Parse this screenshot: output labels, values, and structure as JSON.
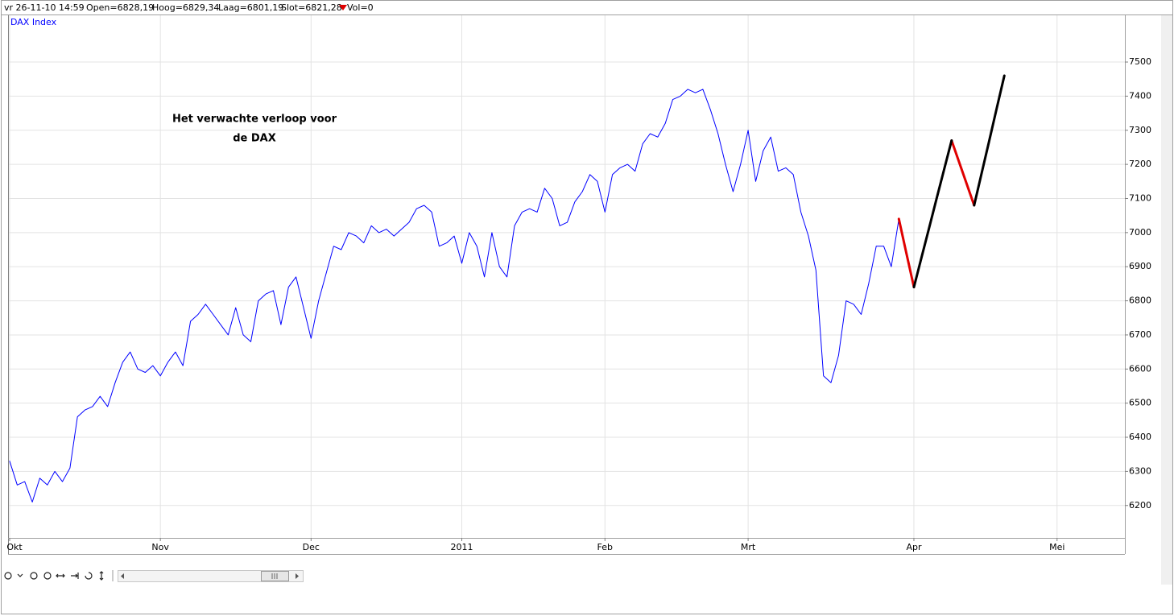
{
  "info_bar": {
    "items": [
      "vr 26-11-10 14:59",
      "Open=6828,19",
      "Hoog=6829,34",
      "Laag=6801,19",
      "Slot=6821,28",
      "Vol=0"
    ]
  },
  "chart_data": {
    "type": "line",
    "title": "DAX Index",
    "annotations": [
      "Het verwachte verloop voor",
      "de DAX"
    ],
    "categories": [
      "Okt",
      null,
      null,
      null,
      null,
      null,
      null,
      null,
      null,
      null,
      null,
      null,
      null,
      null,
      null,
      null,
      null,
      null,
      null,
      null,
      "Nov",
      null,
      null,
      null,
      null,
      null,
      null,
      null,
      null,
      null,
      null,
      null,
      null,
      null,
      null,
      null,
      null,
      null,
      null,
      null,
      "Dec",
      null,
      null,
      null,
      null,
      null,
      null,
      null,
      null,
      null,
      null,
      null,
      null,
      null,
      null,
      null,
      null,
      null,
      null,
      null,
      "2011",
      null,
      null,
      null,
      null,
      null,
      null,
      null,
      null,
      null,
      null,
      null,
      null,
      null,
      null,
      null,
      null,
      null,
      null,
      "Feb",
      null,
      null,
      null,
      null,
      null,
      null,
      null,
      null,
      null,
      null,
      null,
      null,
      null,
      null,
      null,
      null,
      null,
      null,
      "Mrt",
      null,
      null,
      null,
      null,
      null,
      null,
      null,
      null,
      null,
      null,
      null,
      null,
      null,
      null,
      null,
      null,
      null,
      null,
      null,
      null,
      null,
      "Apr",
      null,
      null,
      null,
      null,
      null,
      null,
      null,
      null,
      null,
      null,
      null,
      null,
      null,
      null,
      null,
      null,
      null,
      null,
      "Mei",
      null,
      null,
      null,
      null,
      null,
      null,
      null,
      null,
      null
    ],
    "series": [
      {
        "color": "#0000ff",
        "width": 1,
        "values": [
          6330,
          6260,
          6270,
          6210,
          6280,
          6260,
          6300,
          6270,
          6310,
          6460,
          6480,
          6490,
          6520,
          6490,
          6560,
          6620,
          6650,
          6600,
          6590,
          6610,
          6580,
          6620,
          6650,
          6610,
          6740,
          6760,
          6790,
          6760,
          6730,
          6700,
          6780,
          6700,
          6680,
          6800,
          6820,
          6830,
          6730,
          6840,
          6870,
          6780,
          6690,
          6800,
          6880,
          6960,
          6950,
          7000,
          6990,
          6970,
          7020,
          7000,
          7010,
          6990,
          7010,
          7030,
          7070,
          7080,
          7060,
          6960,
          6970,
          6990,
          6910,
          7000,
          6960,
          6870,
          7000,
          6900,
          6870,
          7020,
          7060,
          7070,
          7060,
          7130,
          7100,
          7020,
          7030,
          7090,
          7120,
          7170,
          7150,
          7060,
          7170,
          7190,
          7200,
          7180,
          7260,
          7290,
          7280,
          7320,
          7390,
          7400,
          7420,
          7410,
          7420,
          7360,
          7290,
          7200,
          7120,
          7200,
          7300,
          7150,
          7240,
          7280,
          7180,
          7190,
          7170,
          7060,
          6990,
          6890,
          6580,
          6560,
          6640,
          6800,
          6790,
          6760,
          6850,
          6960,
          6960,
          6900,
          7040,
          null,
          null,
          null,
          null,
          null,
          null,
          null,
          null,
          null,
          null,
          null,
          null,
          null,
          null,
          null,
          null,
          null,
          null,
          null,
          null,
          null,
          null,
          null,
          null,
          null,
          null,
          null,
          null,
          null,
          null
        ]
      },
      {
        "color": "#e00000",
        "width": 3,
        "values": [
          null,
          null,
          null,
          null,
          null,
          null,
          null,
          null,
          null,
          null,
          null,
          null,
          null,
          null,
          null,
          null,
          null,
          null,
          null,
          null,
          null,
          null,
          null,
          null,
          null,
          null,
          null,
          null,
          null,
          null,
          null,
          null,
          null,
          null,
          null,
          null,
          null,
          null,
          null,
          null,
          null,
          null,
          null,
          null,
          null,
          null,
          null,
          null,
          null,
          null,
          null,
          null,
          null,
          null,
          null,
          null,
          null,
          null,
          null,
          null,
          null,
          null,
          null,
          null,
          null,
          null,
          null,
          null,
          null,
          null,
          null,
          null,
          null,
          null,
          null,
          null,
          null,
          null,
          null,
          null,
          null,
          null,
          null,
          null,
          null,
          null,
          null,
          null,
          null,
          null,
          null,
          null,
          null,
          null,
          null,
          null,
          null,
          null,
          null,
          null,
          null,
          null,
          null,
          null,
          null,
          null,
          null,
          null,
          null,
          null,
          null,
          null,
          null,
          null,
          null,
          null,
          null,
          null,
          7040,
          6940,
          6840,
          null,
          null,
          null,
          null,
          7270,
          7207,
          7143,
          7080,
          null,
          null,
          null,
          null,
          null,
          null,
          null,
          null,
          null,
          null,
          null,
          null,
          null,
          null,
          null,
          null,
          null,
          null,
          null,
          null
        ]
      },
      {
        "color": "#000000",
        "width": 3,
        "values": [
          null,
          null,
          null,
          null,
          null,
          null,
          null,
          null,
          null,
          null,
          null,
          null,
          null,
          null,
          null,
          null,
          null,
          null,
          null,
          null,
          null,
          null,
          null,
          null,
          null,
          null,
          null,
          null,
          null,
          null,
          null,
          null,
          null,
          null,
          null,
          null,
          null,
          null,
          null,
          null,
          null,
          null,
          null,
          null,
          null,
          null,
          null,
          null,
          null,
          null,
          null,
          null,
          null,
          null,
          null,
          null,
          null,
          null,
          null,
          null,
          null,
          null,
          null,
          null,
          null,
          null,
          null,
          null,
          null,
          null,
          null,
          null,
          null,
          null,
          null,
          null,
          null,
          null,
          null,
          null,
          null,
          null,
          null,
          null,
          null,
          null,
          null,
          null,
          null,
          null,
          null,
          null,
          null,
          null,
          null,
          null,
          null,
          null,
          null,
          null,
          null,
          null,
          null,
          null,
          null,
          null,
          null,
          null,
          null,
          null,
          null,
          null,
          null,
          null,
          null,
          null,
          null,
          null,
          null,
          null,
          6840,
          6926,
          7012,
          7098,
          7184,
          7270,
          null,
          null,
          7080,
          7175,
          7270,
          7365,
          7460,
          null,
          null,
          null,
          null,
          null,
          null,
          null,
          null,
          null,
          null,
          null,
          null,
          null,
          null,
          null,
          null
        ]
      }
    ],
    "ylim": [
      6105,
      7637
    ],
    "yticks": [
      6200,
      6300,
      6400,
      6500,
      6600,
      6700,
      6800,
      6900,
      7000,
      7100,
      7200,
      7300,
      7400,
      7500
    ],
    "grid": true
  }
}
